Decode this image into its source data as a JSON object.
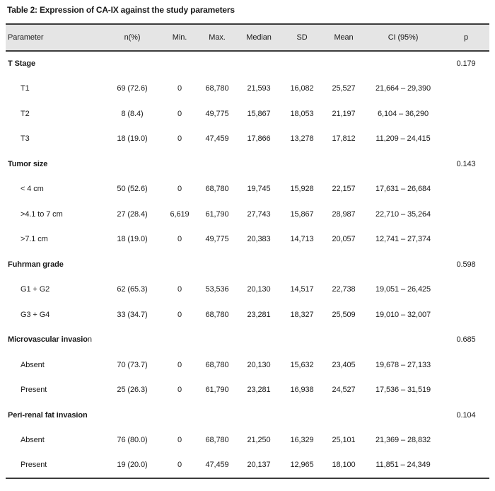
{
  "title": "Table 2: Expression of CA-IX against the study parameters",
  "colors": {
    "header_bg": "#e5e5e5",
    "rule": "#3c3c3c",
    "text": "#1b1b1b",
    "page_bg": "#ffffff"
  },
  "table": {
    "columns": [
      "Parameter",
      "n(%)",
      "Min.",
      "Max.",
      "Median",
      "SD",
      "Mean",
      "CI (95%)",
      "p"
    ],
    "sections": [
      {
        "header": "T Stage",
        "header_tail": "",
        "p": "0.179",
        "rows": [
          {
            "label": "T1",
            "cells": [
              "69 (72.6)",
              "0",
              "68,780",
              "21,593",
              "16,082",
              "25,527",
              "21,664 – 29,390"
            ]
          },
          {
            "label": "T2",
            "cells": [
              "8 (8.4)",
              "0",
              "49,775",
              "15,867",
              "18,053",
              "21,197",
              "6,104 – 36,290"
            ]
          },
          {
            "label": "T3",
            "cells": [
              "18 (19.0)",
              "0",
              "47,459",
              "17,866",
              "13,278",
              "17,812",
              "11,209 – 24,415"
            ]
          }
        ]
      },
      {
        "header": "Tumor size",
        "header_tail": "",
        "p": "0.143",
        "rows": [
          {
            "label": "< 4 cm",
            "cells": [
              "50 (52.6)",
              "0",
              "68,780",
              "19,745",
              "15,928",
              "22,157",
              "17,631 – 26,684"
            ]
          },
          {
            "label": ">4.1 to 7 cm",
            "cells": [
              "27 (28.4)",
              "6,619",
              "61,790",
              "27,743",
              "15,867",
              "28,987",
              "22,710 – 35,264"
            ]
          },
          {
            "label": ">7.1 cm",
            "cells": [
              "18 (19.0)",
              "0",
              "49,775",
              "20,383",
              "14,713",
              "20,057",
              "12,741 – 27,374"
            ]
          }
        ]
      },
      {
        "header": "Fuhrman grade",
        "header_tail": "",
        "p": "0.598",
        "rows": [
          {
            "label": "G1 + G2",
            "cells": [
              "62 (65.3)",
              "0",
              "53,536",
              "20,130",
              "14,517",
              "22,738",
              "19,051 – 26,425"
            ]
          },
          {
            "label": "G3 + G4",
            "cells": [
              "33 (34.7)",
              "0",
              "68,780",
              "23,281",
              "18,327",
              "25,509",
              "19,010 – 32,007"
            ]
          }
        ]
      },
      {
        "header": "Microvascular invasio",
        "header_tail": "n",
        "p": "0.685",
        "rows": [
          {
            "label": "Absent",
            "cells": [
              "70 (73.7)",
              "0",
              "68,780",
              "20,130",
              "15,632",
              "23,405",
              "19,678 – 27,133"
            ]
          },
          {
            "label": "Present",
            "cells": [
              "25 (26.3)",
              "0",
              "61,790",
              "23,281",
              "16,938",
              "24,527",
              "17,536 – 31,519"
            ]
          }
        ]
      },
      {
        "header": "Peri-renal fat invasion",
        "header_tail": "",
        "p": "0.104",
        "rows": [
          {
            "label": "Absent",
            "cells": [
              "76 (80.0)",
              "0",
              "68,780",
              "21,250",
              "16,329",
              "25,101",
              "21,369 – 28,832"
            ]
          },
          {
            "label": "Present",
            "cells": [
              "19 (20.0)",
              "0",
              "47,459",
              "20,137",
              "12,965",
              "18,100",
              "11,851 – 24,349"
            ]
          }
        ]
      }
    ]
  }
}
